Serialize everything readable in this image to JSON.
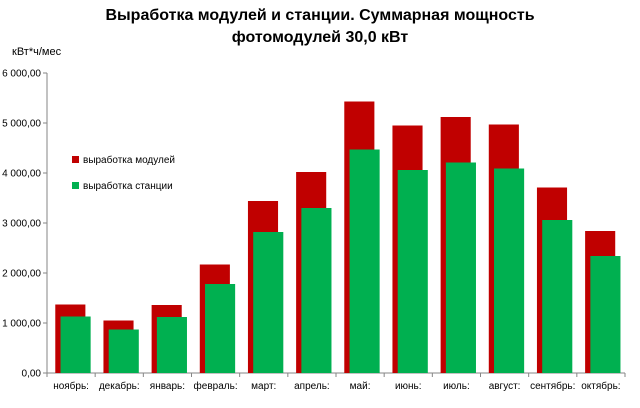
{
  "chart_data": {
    "type": "bar",
    "title_lines": [
      "Выработка модулей и станции. Суммарная мощность",
      "фотомодулей 30,0 кВт"
    ],
    "ylabel": "кВт*ч/мес",
    "ylim": [
      0,
      6000
    ],
    "yticks": [
      0,
      1000,
      2000,
      3000,
      4000,
      5000,
      6000
    ],
    "ytick_labels": [
      "0,00",
      "1 000,00",
      "2 000,00",
      "3 000,00",
      "4 000,00",
      "5 000,00",
      "6 000,00"
    ],
    "grid": false,
    "legend_position": "left",
    "categories": [
      "ноябрь:",
      "декабрь:",
      "январь:",
      "февраль:",
      "март:",
      "апрель:",
      "май:",
      "июнь:",
      "июль:",
      "август:",
      "сентябрь:",
      "октябрь:"
    ],
    "series": [
      {
        "name": "выработка модулей",
        "color": "#c00000",
        "values": [
          1370,
          1050,
          1360,
          2170,
          3440,
          4020,
          5430,
          4950,
          5120,
          4970,
          3710,
          2840
        ]
      },
      {
        "name": "выработка станции",
        "color": "#00b050",
        "values": [
          1130,
          870,
          1120,
          1780,
          2820,
          3300,
          4470,
          4060,
          4210,
          4090,
          3060,
          2340
        ]
      }
    ]
  }
}
